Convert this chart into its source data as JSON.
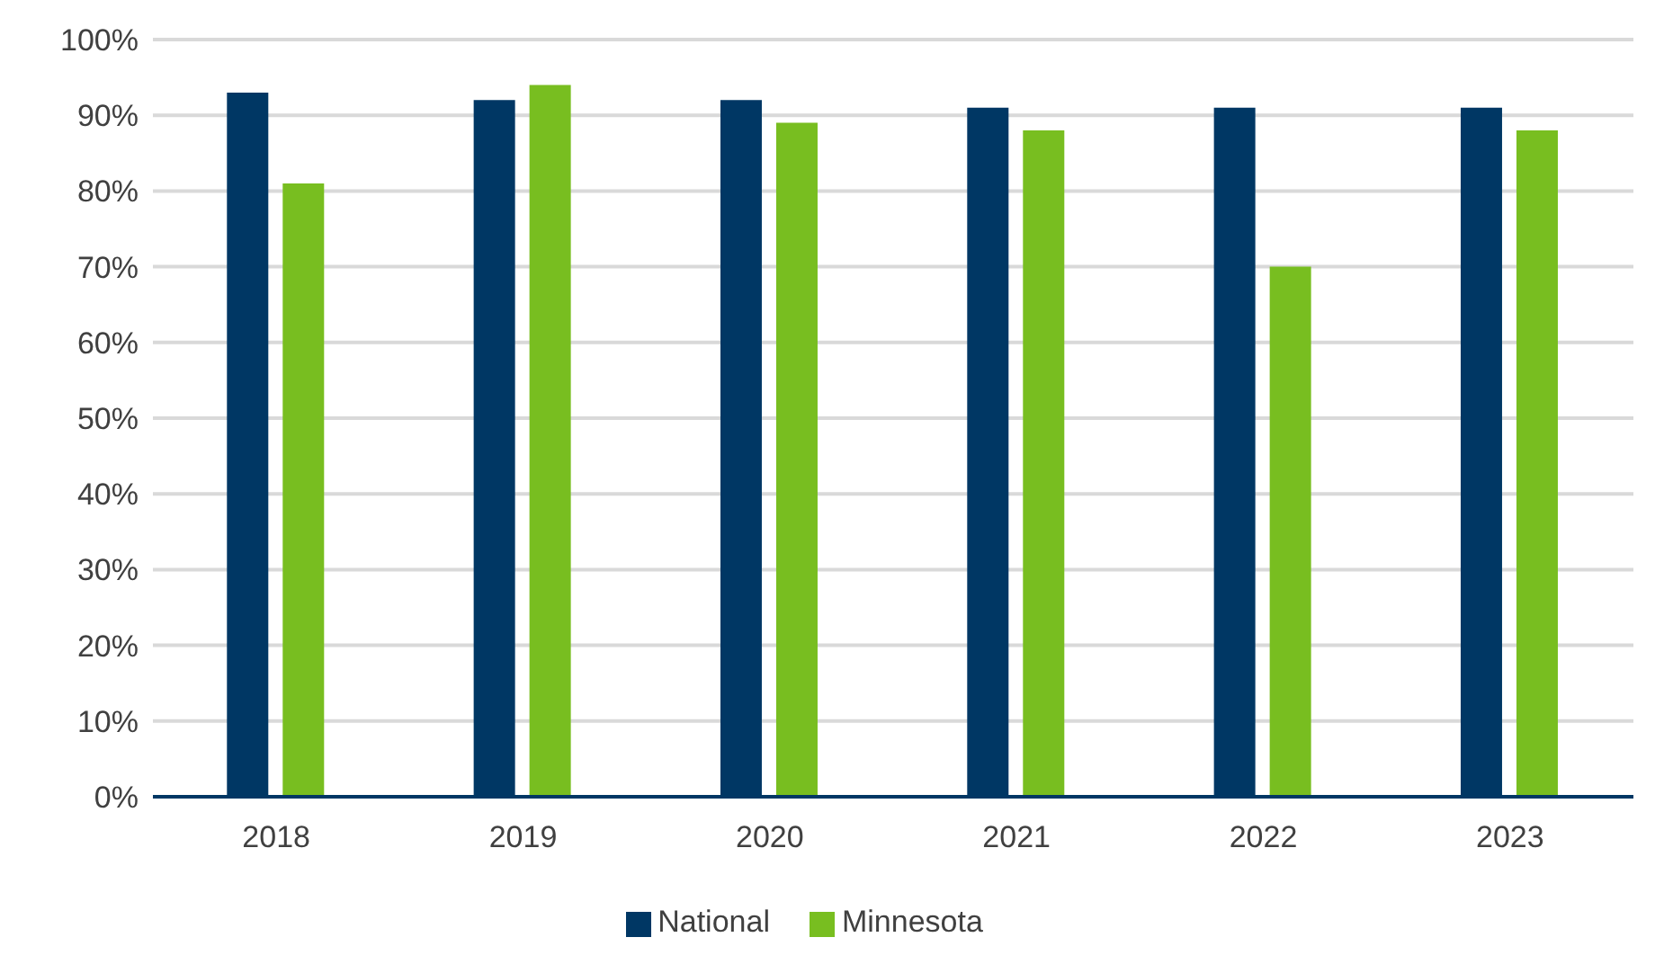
{
  "chart_data": {
    "type": "bar",
    "categories": [
      "2018",
      "2019",
      "2020",
      "2021",
      "2022",
      "2023"
    ],
    "series": [
      {
        "name": "National",
        "color": "#003764",
        "values": [
          93,
          92,
          92,
          91,
          91,
          91
        ]
      },
      {
        "name": "Minnesota",
        "color": "#78be20",
        "values": [
          81,
          94,
          89,
          88,
          70,
          88
        ]
      }
    ],
    "ylim": [
      0,
      100
    ],
    "yticks": [
      {
        "value": 0,
        "label": "0%"
      },
      {
        "value": 10,
        "label": "10%"
      },
      {
        "value": 20,
        "label": "20%"
      },
      {
        "value": 30,
        "label": "30%"
      },
      {
        "value": 40,
        "label": "40%"
      },
      {
        "value": 50,
        "label": "50%"
      },
      {
        "value": 60,
        "label": "60%"
      },
      {
        "value": 70,
        "label": "70%"
      },
      {
        "value": 80,
        "label": "80%"
      },
      {
        "value": 90,
        "label": "90%"
      },
      {
        "value": 100,
        "label": "100%"
      }
    ],
    "grid": "y",
    "legend": "bottom"
  }
}
